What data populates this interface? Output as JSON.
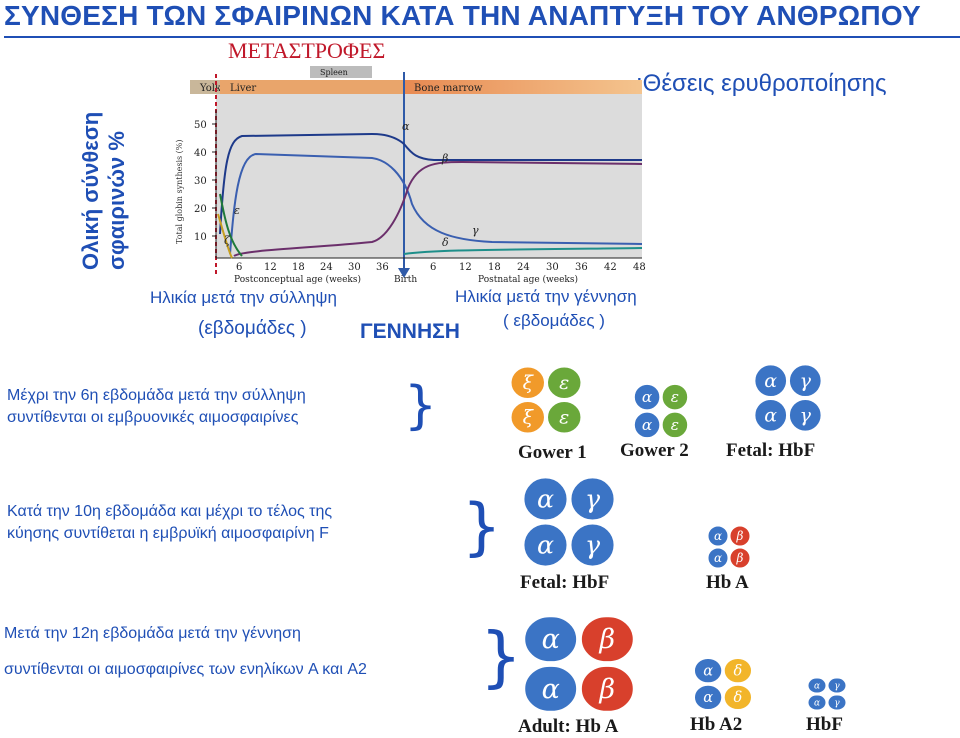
{
  "title": "ΣΥΝΘΕΣΗ ΤΩΝ ΣΦΑΙΡΙΝΩΝ ΚΑΤΑ ΤΗΝ ΑΝΑΠΤΥΞΗ ΤΟΥ ΑΝΘΡΩΠΟΥ",
  "subtitle": "ΜΕΤΑΣΤΡΟΦΕΣ",
  "erythropoiesis_label": ":Θέσεις ερυθροποίησης",
  "y_axis_label_line1": "Ολική σύνθεση",
  "y_axis_label_line2": "σφαιρινών %",
  "age_after_conception": "Ηλικία μετά την σύλληψη",
  "weeks_left": "(εβδομάδες )",
  "birth_label": "ΓΕΝΝΗΣΗ",
  "age_after_birth": "Ηλικία μετά την γέννηση",
  "weeks_right": "( εβδομάδες )",
  "chart_data": {
    "type": "line",
    "sites": [
      "Yolk sac",
      "Liver",
      "Spleen",
      "Bone marrow"
    ],
    "ylabel": "Total globin synthesis (%)",
    "xlabel_left": "Postconceptual age (weeks)",
    "xlabel_mid": "Birth",
    "xlabel_right": "Postnatal age (weeks)",
    "yticks": [
      "50",
      "40",
      "30",
      "20",
      "10"
    ],
    "xticks_pre": [
      "6",
      "12",
      "18",
      "24",
      "30",
      "36"
    ],
    "xticks_post": [
      "6",
      "12",
      "18",
      "24",
      "30",
      "36",
      "42",
      "48"
    ],
    "series": [
      {
        "name": "α",
        "color": "#1e3a8a"
      },
      {
        "name": "γ",
        "color": "#3a5fb0"
      },
      {
        "name": "β",
        "color": "#6b2f6b"
      },
      {
        "name": "ε",
        "color": "#1f7a3a"
      },
      {
        "name": "ζ",
        "color": "#c8a020"
      },
      {
        "name": "δ",
        "color": "#1e8f8a"
      }
    ]
  },
  "block1": {
    "line1": "Μέχρι την 6η εβδομάδα μετά την σύλληψη",
    "line2": "συντίθενται οι εμβρυονικές αιμοσφαιρίνες"
  },
  "block2": {
    "line1": "Κατά την 10η εβδομάδα και μέχρι το τέλος της",
    "line2": "κύησης συντίθεται η εμβρυϊκή αιμοσφαιρίνη F"
  },
  "block3": {
    "line1": "Μετά την 12η εβδομάδα μετά την γέννηση",
    "line2": "συντίθενται οι αιμοσφαιρίνες των ενηλίκων A και A2"
  },
  "hemoglobins": {
    "gower1": {
      "label": "Gower 1",
      "chains": [
        "ξ",
        "ε",
        "ξ",
        "ε"
      ]
    },
    "gower2": {
      "label": "Gower 2",
      "chains": [
        "α",
        "ε",
        "α",
        "ε"
      ]
    },
    "fetal1": {
      "label": "Fetal: HbF",
      "chains": [
        "α",
        "γ",
        "α",
        "γ"
      ]
    },
    "fetal2": {
      "label": "Fetal: HbF",
      "chains": [
        "α",
        "γ",
        "α",
        "γ"
      ]
    },
    "hba_small": {
      "label": "Hb A",
      "chains": [
        "α",
        "β",
        "α",
        "β"
      ]
    },
    "adult": {
      "label": "Adult: Hb A",
      "chains": [
        "α",
        "β",
        "α",
        "β"
      ]
    },
    "hba2": {
      "label": "Hb A2",
      "chains": [
        "α",
        "δ",
        "α",
        "δ"
      ]
    },
    "hbf_small": {
      "label": "HbF",
      "chains": [
        "α",
        "γ",
        "α",
        "γ"
      ]
    }
  },
  "colors": {
    "alpha": "#3b74c5",
    "gamma": "#3b74c5",
    "beta": "#d8402c",
    "epsilon": "#6aa83a",
    "zeta": "#f19a2a",
    "delta": "#f2b52a",
    "title_blue": "#1f4fb5",
    "subtitle_red": "#c0182a"
  }
}
